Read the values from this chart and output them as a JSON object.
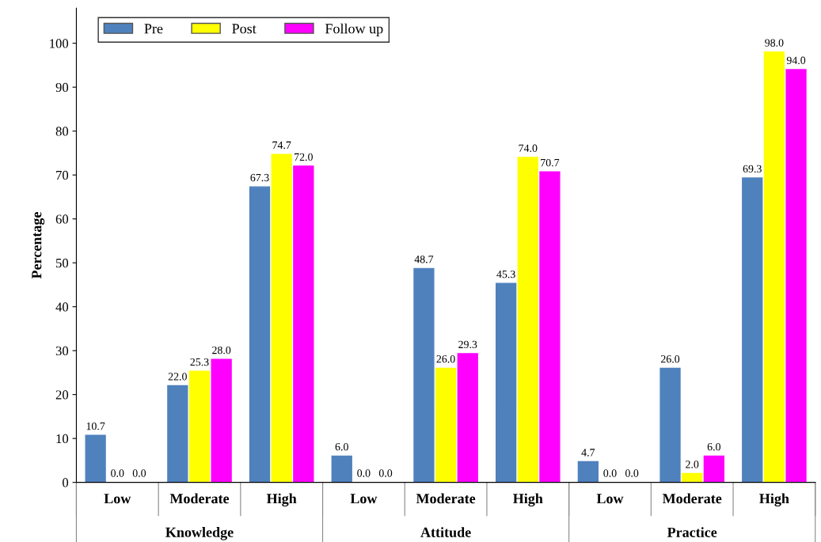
{
  "chart_data": {
    "type": "bar",
    "ylabel": "Percentage",
    "categories": [
      "Low",
      "Moderate",
      "High",
      "Low",
      "Moderate",
      "High",
      "Low",
      "Moderate",
      "High"
    ],
    "series": [
      {
        "name": "Pre",
        "color": "#4f81bd",
        "values": [
          10.7,
          22.0,
          67.3,
          6.0,
          48.7,
          45.3,
          4.7,
          26.0,
          69.3
        ],
        "value_labels": [
          "10.7",
          "22.0",
          "67.3",
          "6.0",
          "48.7",
          "45.3",
          "4.7",
          "26.0",
          "69.3"
        ]
      },
      {
        "name": "Post",
        "color": "#ffff00",
        "values": [
          0.0,
          25.3,
          74.7,
          0.0,
          26.0,
          74.0,
          0.0,
          2.0,
          98.0
        ],
        "value_labels": [
          "0.0",
          "25.3",
          "74.7",
          "0.0",
          "26.0",
          "74.0",
          "0.0",
          "2.0",
          "98.0"
        ]
      },
      {
        "name": "Follow up",
        "color": "#ff00ff",
        "values": [
          0.0,
          28.0,
          72.0,
          0.0,
          29.3,
          70.7,
          0.0,
          6.0,
          94.0
        ],
        "value_labels": [
          "0.0",
          "28.0",
          "72.0",
          "0.0",
          "29.3",
          "70.7",
          "0.0",
          "6.0",
          "94.0"
        ]
      }
    ],
    "annotations": [
      "Knowledge",
      "Attitude",
      "Practice"
    ],
    "ylim": [
      0,
      108
    ],
    "yticks": [
      0,
      10,
      20,
      30,
      40,
      50,
      60,
      70,
      80,
      90,
      100
    ],
    "grid": false,
    "legend": "top left"
  }
}
